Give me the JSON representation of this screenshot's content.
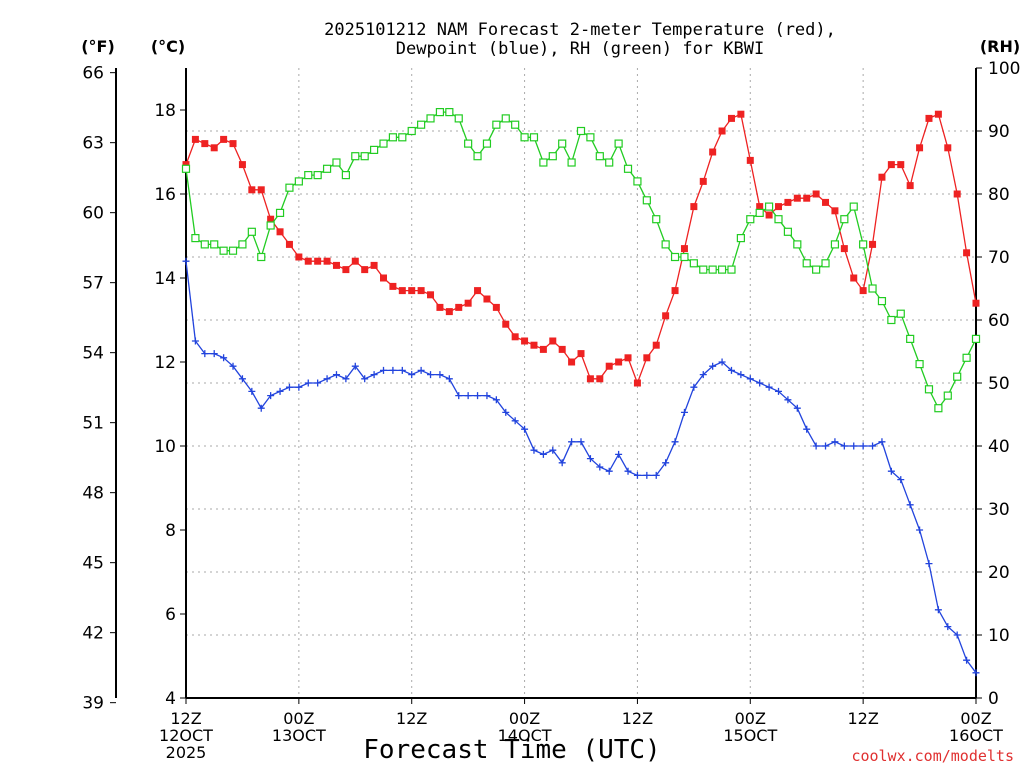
{
  "chart_data": {
    "type": "line",
    "title_line1": "2025101212 NAM Forecast 2-meter Temperature (red),",
    "title_line2": "Dewpoint (blue), RH (green) for KBWI",
    "xlabel": "Forecast Time (UTC)",
    "watermark": "coolwx.com/modelts",
    "left_axis_f_label": "(°F)",
    "left_axis_c_label": "(°C)",
    "right_axis_label": "(RH)",
    "grid": true,
    "x_range_hours": [
      0,
      84
    ],
    "y_range_c": [
      4,
      19
    ],
    "y_range_rh": [
      0,
      100
    ],
    "y_range_f": [
      39.2,
      66.2
    ],
    "c_ticks": [
      "4",
      "6",
      "8",
      "10",
      "12",
      "14",
      "16",
      "18"
    ],
    "f_ticks": [
      "39",
      "42",
      "45",
      "48",
      "51",
      "54",
      "57",
      "60",
      "63",
      "66"
    ],
    "rh_ticks": [
      "0",
      "10",
      "20",
      "30",
      "40",
      "50",
      "60",
      "70",
      "80",
      "90",
      "100"
    ],
    "x_ticks": [
      {
        "hour": 0,
        "line1": "12Z",
        "line2": "12OCT",
        "line3": "2025"
      },
      {
        "hour": 12,
        "line1": "00Z",
        "line2": "13OCT",
        "line3": ""
      },
      {
        "hour": 24,
        "line1": "12Z",
        "line2": "",
        "line3": ""
      },
      {
        "hour": 36,
        "line1": "00Z",
        "line2": "14OCT",
        "line3": ""
      },
      {
        "hour": 48,
        "line1": "12Z",
        "line2": "",
        "line3": ""
      },
      {
        "hour": 60,
        "line1": "00Z",
        "line2": "15OCT",
        "line3": ""
      },
      {
        "hour": 72,
        "line1": "12Z",
        "line2": "",
        "line3": ""
      },
      {
        "hour": 84,
        "line1": "00Z",
        "line2": "16OCT",
        "line3": ""
      }
    ],
    "x_hours": [
      0,
      1,
      2,
      3,
      4,
      5,
      6,
      7,
      8,
      9,
      10,
      11,
      12,
      13,
      14,
      15,
      16,
      17,
      18,
      19,
      20,
      21,
      22,
      23,
      24,
      25,
      26,
      27,
      28,
      29,
      30,
      31,
      32,
      33,
      34,
      35,
      36,
      37,
      38,
      39,
      40,
      41,
      42,
      43,
      44,
      45,
      46,
      47,
      48,
      49,
      50,
      51,
      52,
      53,
      54,
      55,
      56,
      57,
      58,
      59,
      60,
      61,
      62,
      63,
      64,
      65,
      66,
      67,
      68,
      69,
      70,
      71,
      72,
      73,
      74,
      75,
      76,
      77,
      78,
      79,
      80,
      81,
      82,
      83,
      84
    ],
    "series": [
      {
        "color": "#ee2222",
        "axis": "C",
        "marker": "filled-square",
        "values": [
          16.7,
          17.3,
          17.2,
          17.1,
          17.3,
          17.2,
          16.7,
          16.1,
          16.1,
          15.4,
          15.1,
          14.8,
          14.5,
          14.4,
          14.4,
          14.4,
          14.3,
          14.2,
          14.4,
          14.2,
          14.3,
          14.0,
          13.8,
          13.7,
          13.7,
          13.7,
          13.6,
          13.3,
          13.2,
          13.3,
          13.4,
          13.7,
          13.5,
          13.3,
          12.9,
          12.6,
          12.5,
          12.4,
          12.3,
          12.5,
          12.3,
          12.0,
          12.2,
          11.6,
          11.6,
          11.9,
          12.0,
          12.1,
          11.5,
          12.1,
          12.4,
          13.1,
          13.7,
          14.7,
          15.7,
          16.3,
          17.0,
          17.5,
          17.8,
          17.9,
          16.8,
          15.7,
          15.5,
          15.7,
          15.8,
          15.9,
          15.9,
          16.0,
          15.8,
          15.6,
          14.7,
          14.0,
          13.7,
          14.8,
          16.4,
          16.7,
          16.7,
          16.2,
          17.1,
          17.8,
          17.9,
          17.1,
          16.0,
          14.6,
          13.4
        ]
      },
      {
        "color": "#2244dd",
        "axis": "C",
        "marker": "plus",
        "values": [
          14.4,
          12.5,
          12.2,
          12.2,
          12.1,
          11.9,
          11.6,
          11.3,
          10.9,
          11.2,
          11.3,
          11.4,
          11.4,
          11.5,
          11.5,
          11.6,
          11.7,
          11.6,
          11.9,
          11.6,
          11.7,
          11.8,
          11.8,
          11.8,
          11.7,
          11.8,
          11.7,
          11.7,
          11.6,
          11.2,
          11.2,
          11.2,
          11.2,
          11.1,
          10.8,
          10.6,
          10.4,
          9.9,
          9.8,
          9.9,
          9.6,
          10.1,
          10.1,
          9.7,
          9.5,
          9.4,
          9.8,
          9.4,
          9.3,
          9.3,
          9.3,
          9.6,
          10.1,
          10.8,
          11.4,
          11.7,
          11.9,
          12.0,
          11.8,
          11.7,
          11.6,
          11.5,
          11.4,
          11.3,
          11.1,
          10.9,
          10.4,
          10.0,
          10.0,
          10.1,
          10.0,
          10.0,
          10.0,
          10.0,
          10.1,
          9.4,
          9.2,
          8.6,
          8.0,
          7.2,
          6.1,
          5.7,
          5.5,
          4.9,
          4.6
        ]
      },
      {
        "color": "#22cc22",
        "axis": "RH",
        "marker": "open-square",
        "values": [
          84,
          73,
          72,
          72,
          71,
          71,
          72,
          74,
          70,
          75,
          77,
          81,
          82,
          83,
          83,
          84,
          85,
          83,
          86,
          86,
          87,
          88,
          89,
          89,
          90,
          91,
          92,
          93,
          93,
          92,
          88,
          86,
          88,
          91,
          92,
          91,
          89,
          89,
          85,
          86,
          88,
          85,
          90,
          89,
          86,
          85,
          88,
          84,
          82,
          79,
          76,
          72,
          70,
          70,
          69,
          68,
          68,
          68,
          68,
          73,
          76,
          77,
          78,
          76,
          74,
          72,
          69,
          68,
          69,
          72,
          76,
          78,
          72,
          65,
          63,
          60,
          61,
          57,
          53,
          49,
          46,
          48,
          51,
          54,
          57
        ]
      }
    ]
  }
}
